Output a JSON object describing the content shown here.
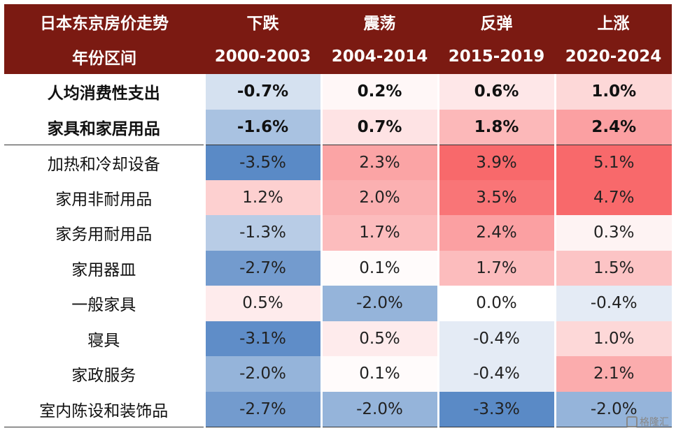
{
  "chart_data": {
    "type": "heatmap",
    "header": {
      "row1": [
        "日本东京房价走势",
        "下跌",
        "震荡",
        "反弹",
        "上涨"
      ],
      "row2": [
        "年份区间",
        "2000-2003",
        "2004-2014",
        "2015-2019",
        "2020-2024"
      ]
    },
    "rows": [
      {
        "label": "人均消费性支出",
        "values": [
          "-0.7%",
          "0.2%",
          "0.6%",
          "1.0%"
        ],
        "bold": true
      },
      {
        "label": "家具和家居用品",
        "values": [
          "-1.6%",
          "0.7%",
          "1.8%",
          "2.4%"
        ],
        "bold": true
      },
      {
        "label": "加热和冷却设备",
        "values": [
          "-3.5%",
          "2.3%",
          "3.9%",
          "5.1%"
        ]
      },
      {
        "label": "家用非耐用品",
        "values": [
          "1.2%",
          "2.0%",
          "3.5%",
          "4.7%"
        ]
      },
      {
        "label": "家务用耐用品",
        "values": [
          "-1.3%",
          "1.7%",
          "2.4%",
          "0.3%"
        ]
      },
      {
        "label": "家用器皿",
        "values": [
          "-2.7%",
          "0.1%",
          "1.7%",
          "1.5%"
        ]
      },
      {
        "label": "一般家具",
        "values": [
          "0.5%",
          "-2.0%",
          "0.0%",
          "-0.4%"
        ]
      },
      {
        "label": "寝具",
        "values": [
          "-3.1%",
          "0.5%",
          "-0.4%",
          "1.0%"
        ]
      },
      {
        "label": "家政服务",
        "values": [
          "-2.0%",
          "0.1%",
          "-0.4%",
          "2.1%"
        ]
      },
      {
        "label": "室内陈设和装饰品",
        "values": [
          "-2.7%",
          "-2.0%",
          "-3.3%",
          "-2.0%"
        ]
      }
    ]
  },
  "watermark": "格隆汇"
}
